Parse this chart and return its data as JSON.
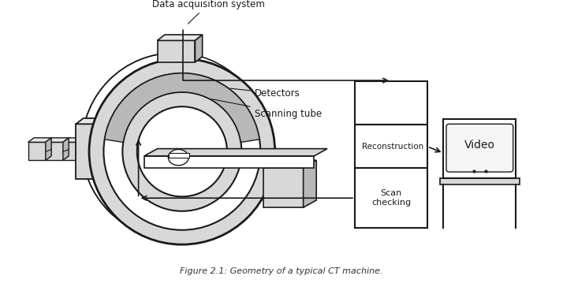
{
  "title": "Figure 2.1: Geometry of a typical CT machine.",
  "bg_color": "#ffffff",
  "line_color": "#1a1a1a",
  "gray_light": "#d8d8d8",
  "gray_mid": "#b8b8b8",
  "gray_dark": "#888888",
  "label_detectors": "Detectors",
  "label_scanning_tube": "Scanning tube",
  "label_data_acq": "Data acquisition system",
  "label_reconstruction": "Reconstruction",
  "label_scan_checking": "Scan\nchecking",
  "label_video": "Video",
  "figsize": [
    7.14,
    3.64
  ],
  "dpi": 100
}
